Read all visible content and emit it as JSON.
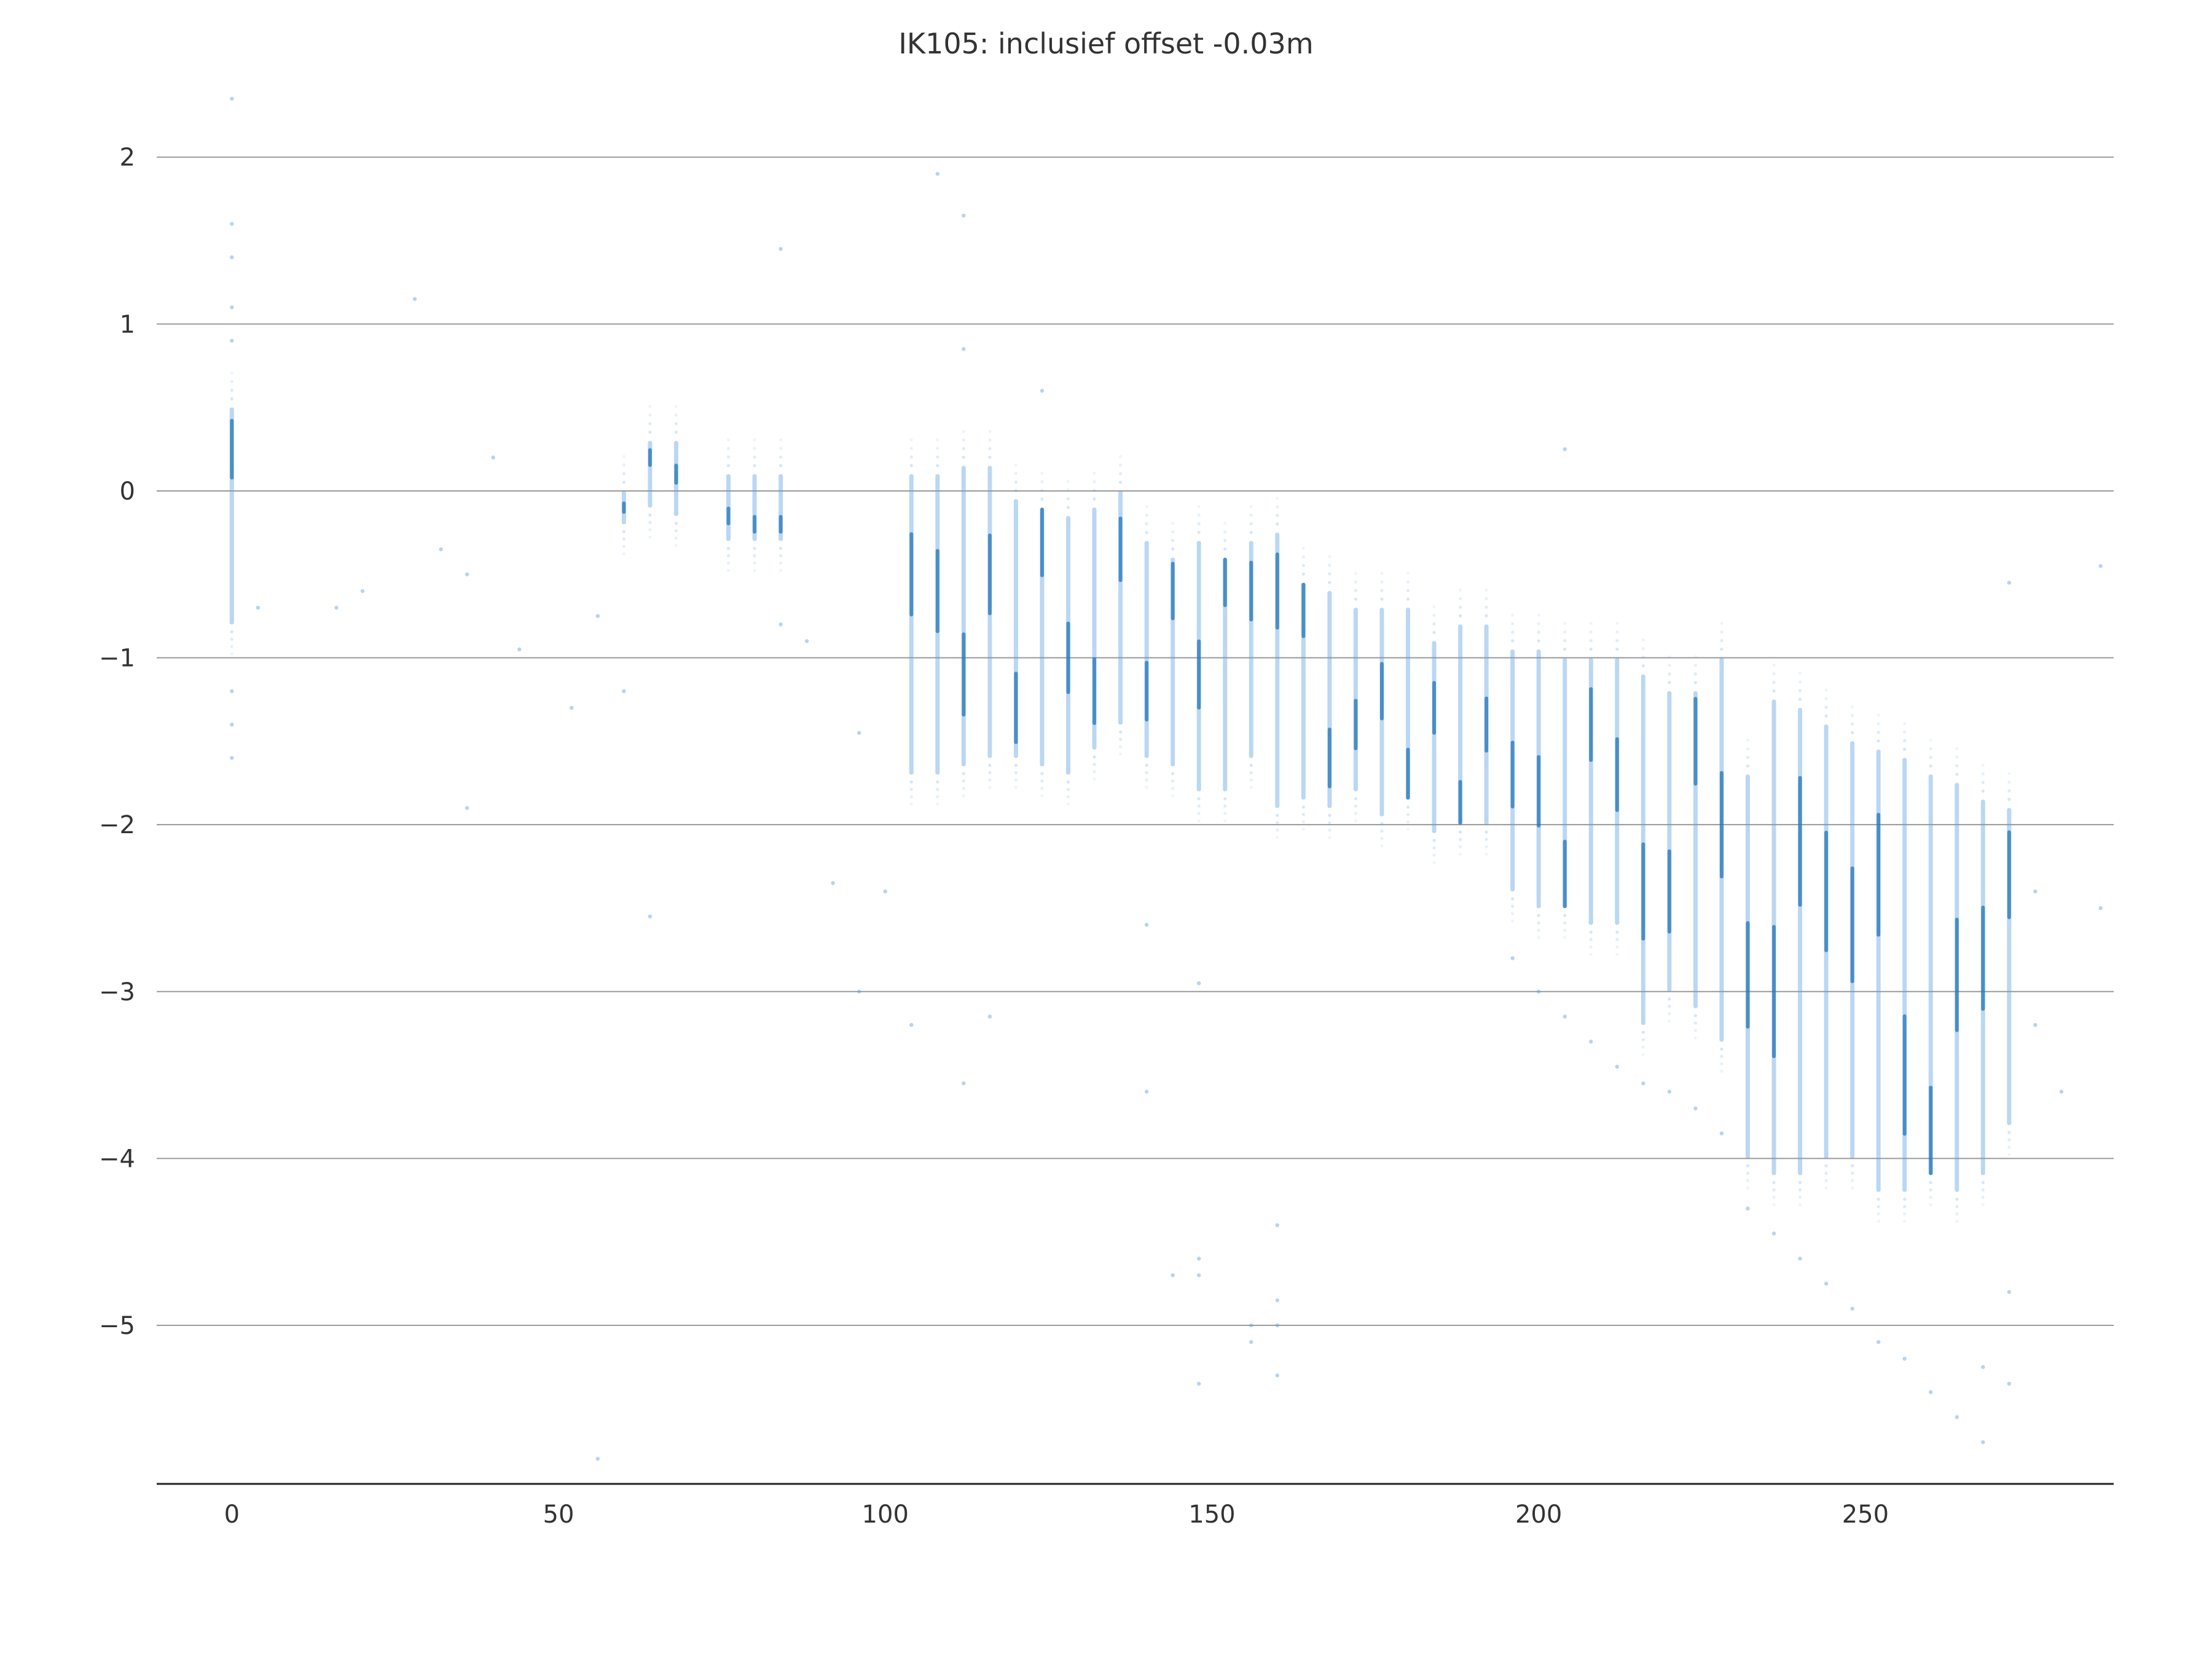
{
  "chart_data": {
    "type": "scatter",
    "title": "IK105: inclusief offset -0.03m",
    "xlabel": "",
    "ylabel": "",
    "xlim": [
      -11.5,
      288
    ],
    "ylim": [
      -5.95,
      2.15
    ],
    "grid": "horizontal",
    "colors": {
      "point": "#5b9fe3",
      "dense": "#1a6fb5",
      "grid": "#9a9a9a",
      "axis": "#222222",
      "text": "#333333"
    },
    "x_ticks": [
      {
        "value": 0,
        "label": "0"
      },
      {
        "value": 50,
        "label": "50"
      },
      {
        "value": 100,
        "label": "100"
      },
      {
        "value": 150,
        "label": "150"
      },
      {
        "value": 200,
        "label": "200"
      },
      {
        "value": 250,
        "label": "250"
      }
    ],
    "y_ticks": [
      {
        "value": 2,
        "label": "2"
      },
      {
        "value": 1,
        "label": "1"
      },
      {
        "value": 0,
        "label": "0"
      },
      {
        "value": -1,
        "label": "−1"
      },
      {
        "value": -2,
        "label": "−2"
      },
      {
        "value": -3,
        "label": "−3"
      },
      {
        "value": -4,
        "label": "−4"
      },
      {
        "value": -5,
        "label": "−5"
      }
    ],
    "series": [
      {
        "columns": [
          {
            "x": 0,
            "ymin": -0.8,
            "ymax": 0.5,
            "center": 0.25
          },
          {
            "x": 60,
            "ymin": -0.2,
            "ymax": 0.0,
            "center": -0.1
          },
          {
            "x": 64,
            "ymin": -0.1,
            "ymax": 0.3,
            "center": 0.2
          },
          {
            "x": 68,
            "ymin": -0.15,
            "ymax": 0.3,
            "center": 0.1
          },
          {
            "x": 76,
            "ymin": -0.3,
            "ymax": 0.1,
            "center": -0.15
          },
          {
            "x": 80,
            "ymin": -0.3,
            "ymax": 0.1,
            "center": -0.2
          },
          {
            "x": 84,
            "ymin": -0.3,
            "ymax": 0.1,
            "center": -0.2
          },
          {
            "x": 104,
            "ymin": -1.7,
            "ymax": 0.1,
            "center": -0.5
          },
          {
            "x": 108,
            "ymin": -1.7,
            "ymax": 0.1,
            "center": -0.6
          },
          {
            "x": 112,
            "ymin": -1.65,
            "ymax": 0.15,
            "center": -1.1
          },
          {
            "x": 116,
            "ymin": -1.6,
            "ymax": 0.15,
            "center": -0.5
          },
          {
            "x": 120,
            "ymin": -1.6,
            "ymax": -0.05,
            "center": -1.3
          },
          {
            "x": 124,
            "ymin": -1.65,
            "ymax": -0.1,
            "center": -0.3
          },
          {
            "x": 128,
            "ymin": -1.7,
            "ymax": -0.15,
            "center": -1.0
          },
          {
            "x": 132,
            "ymin": -1.55,
            "ymax": -0.1,
            "center": -1.2
          },
          {
            "x": 136,
            "ymin": -1.4,
            "ymax": 0.0,
            "center": -0.35
          },
          {
            "x": 140,
            "ymin": -1.6,
            "ymax": -0.3,
            "center": -1.2
          },
          {
            "x": 144,
            "ymin": -1.65,
            "ymax": -0.4,
            "center": -0.6
          },
          {
            "x": 148,
            "ymin": -1.8,
            "ymax": -0.3,
            "center": -1.1
          },
          {
            "x": 152,
            "ymin": -1.8,
            "ymax": -0.4,
            "center": -0.5
          },
          {
            "x": 156,
            "ymin": -1.6,
            "ymax": -0.3,
            "center": -0.6
          },
          {
            "x": 160,
            "ymin": -1.9,
            "ymax": -0.25,
            "center": -0.6
          },
          {
            "x": 164,
            "ymin": -1.85,
            "ymax": -0.55,
            "center": -0.7
          },
          {
            "x": 168,
            "ymin": -1.9,
            "ymax": -0.6,
            "center": -1.6
          },
          {
            "x": 172,
            "ymin": -1.8,
            "ymax": -0.7,
            "center": -1.4
          },
          {
            "x": 176,
            "ymin": -1.95,
            "ymax": -0.7,
            "center": -1.2
          },
          {
            "x": 180,
            "ymin": -1.85,
            "ymax": -0.7,
            "center": -1.7
          },
          {
            "x": 184,
            "ymin": -2.05,
            "ymax": -0.9,
            "center": -1.3
          },
          {
            "x": 188,
            "ymin": -2.0,
            "ymax": -0.8,
            "center": -1.9
          },
          {
            "x": 192,
            "ymin": -2.0,
            "ymax": -0.8,
            "center": -1.4
          },
          {
            "x": 196,
            "ymin": -2.4,
            "ymax": -0.95,
            "center": -1.7
          },
          {
            "x": 200,
            "ymin": -2.5,
            "ymax": -0.95,
            "center": -1.8
          },
          {
            "x": 204,
            "ymin": -2.5,
            "ymax": -1.0,
            "center": -2.3
          },
          {
            "x": 208,
            "ymin": -2.6,
            "ymax": -1.0,
            "center": -1.4
          },
          {
            "x": 212,
            "ymin": -2.6,
            "ymax": -1.0,
            "center": -1.7
          },
          {
            "x": 216,
            "ymin": -3.2,
            "ymax": -1.1,
            "center": -2.4
          },
          {
            "x": 220,
            "ymin": -3.0,
            "ymax": -1.2,
            "center": -2.4
          },
          {
            "x": 224,
            "ymin": -3.1,
            "ymax": -1.2,
            "center": -1.5
          },
          {
            "x": 228,
            "ymin": -3.3,
            "ymax": -1.0,
            "center": -2.0
          },
          {
            "x": 232,
            "ymin": -4.0,
            "ymax": -1.7,
            "center": -2.9
          },
          {
            "x": 236,
            "ymin": -4.1,
            "ymax": -1.25,
            "center": -3.0
          },
          {
            "x": 240,
            "ymin": -4.1,
            "ymax": -1.3,
            "center": -2.1
          },
          {
            "x": 244,
            "ymin": -4.0,
            "ymax": -1.4,
            "center": -2.4
          },
          {
            "x": 248,
            "ymin": -4.0,
            "ymax": -1.5,
            "center": -2.6
          },
          {
            "x": 252,
            "ymin": -4.2,
            "ymax": -1.55,
            "center": -2.3
          },
          {
            "x": 256,
            "ymin": -4.2,
            "ymax": -1.6,
            "center": -3.5
          },
          {
            "x": 260,
            "ymin": -4.1,
            "ymax": -1.7,
            "center": -3.9
          },
          {
            "x": 264,
            "ymin": -4.2,
            "ymax": -1.75,
            "center": -2.9
          },
          {
            "x": 268,
            "ymin": -4.1,
            "ymax": -1.85,
            "center": -2.8
          },
          {
            "x": 272,
            "ymin": -3.8,
            "ymax": -1.9,
            "center": -2.3
          }
        ],
        "faint_points": [
          {
            "x": 0,
            "y": 2.35
          },
          {
            "x": 0,
            "y": 1.6
          },
          {
            "x": 0,
            "y": 1.4
          },
          {
            "x": 0,
            "y": 1.1
          },
          {
            "x": 0,
            "y": 0.9
          },
          {
            "x": 0,
            "y": -1.2
          },
          {
            "x": 0,
            "y": -1.4
          },
          {
            "x": 0,
            "y": -1.6
          },
          {
            "x": 4,
            "y": -0.7
          },
          {
            "x": 16,
            "y": -0.7
          },
          {
            "x": 20,
            "y": -0.6
          },
          {
            "x": 28,
            "y": 1.15
          },
          {
            "x": 32,
            "y": -0.35
          },
          {
            "x": 36,
            "y": -0.5
          },
          {
            "x": 36,
            "y": -1.9
          },
          {
            "x": 40,
            "y": 0.2
          },
          {
            "x": 44,
            "y": -0.95
          },
          {
            "x": 52,
            "y": -1.3
          },
          {
            "x": 56,
            "y": -0.75
          },
          {
            "x": 56,
            "y": -5.8
          },
          {
            "x": 60,
            "y": -1.2
          },
          {
            "x": 64,
            "y": -2.55
          },
          {
            "x": 84,
            "y": 1.45
          },
          {
            "x": 84,
            "y": -0.8
          },
          {
            "x": 88,
            "y": -0.9
          },
          {
            "x": 92,
            "y": -2.35
          },
          {
            "x": 96,
            "y": -3.0
          },
          {
            "x": 96,
            "y": -1.45
          },
          {
            "x": 100,
            "y": -2.4
          },
          {
            "x": 104,
            "y": -3.2
          },
          {
            "x": 108,
            "y": 1.9
          },
          {
            "x": 112,
            "y": 1.65
          },
          {
            "x": 112,
            "y": 0.85
          },
          {
            "x": 112,
            "y": -3.55
          },
          {
            "x": 116,
            "y": -3.15
          },
          {
            "x": 124,
            "y": 0.6
          },
          {
            "x": 140,
            "y": -2.6
          },
          {
            "x": 140,
            "y": -3.6
          },
          {
            "x": 148,
            "y": -2.95
          },
          {
            "x": 148,
            "y": -5.35
          },
          {
            "x": 144,
            "y": -4.7
          },
          {
            "x": 148,
            "y": -4.6
          },
          {
            "x": 148,
            "y": -4.7
          },
          {
            "x": 156,
            "y": -5.0
          },
          {
            "x": 156,
            "y": -5.1
          },
          {
            "x": 160,
            "y": -4.4
          },
          {
            "x": 160,
            "y": -4.85
          },
          {
            "x": 160,
            "y": -5.0
          },
          {
            "x": 160,
            "y": -5.3
          },
          {
            "x": 196,
            "y": -2.8
          },
          {
            "x": 200,
            "y": -3.0
          },
          {
            "x": 204,
            "y": -3.15
          },
          {
            "x": 204,
            "y": 0.25
          },
          {
            "x": 208,
            "y": -3.3
          },
          {
            "x": 212,
            "y": -3.45
          },
          {
            "x": 216,
            "y": -3.55
          },
          {
            "x": 220,
            "y": -3.6
          },
          {
            "x": 224,
            "y": -3.7
          },
          {
            "x": 228,
            "y": -3.85
          },
          {
            "x": 232,
            "y": -4.3
          },
          {
            "x": 236,
            "y": -4.45
          },
          {
            "x": 240,
            "y": -4.6
          },
          {
            "x": 244,
            "y": -4.75
          },
          {
            "x": 248,
            "y": -4.9
          },
          {
            "x": 252,
            "y": -5.1
          },
          {
            "x": 256,
            "y": -5.2
          },
          {
            "x": 260,
            "y": -5.4
          },
          {
            "x": 264,
            "y": -5.55
          },
          {
            "x": 268,
            "y": -5.7
          },
          {
            "x": 268,
            "y": -5.25
          },
          {
            "x": 272,
            "y": -4.8
          },
          {
            "x": 272,
            "y": -5.35
          },
          {
            "x": 272,
            "y": -0.55
          },
          {
            "x": 276,
            "y": -2.4
          },
          {
            "x": 276,
            "y": -3.2
          },
          {
            "x": 280,
            "y": -3.6
          },
          {
            "x": 286,
            "y": -0.45
          },
          {
            "x": 286,
            "y": -2.5
          }
        ]
      }
    ]
  }
}
